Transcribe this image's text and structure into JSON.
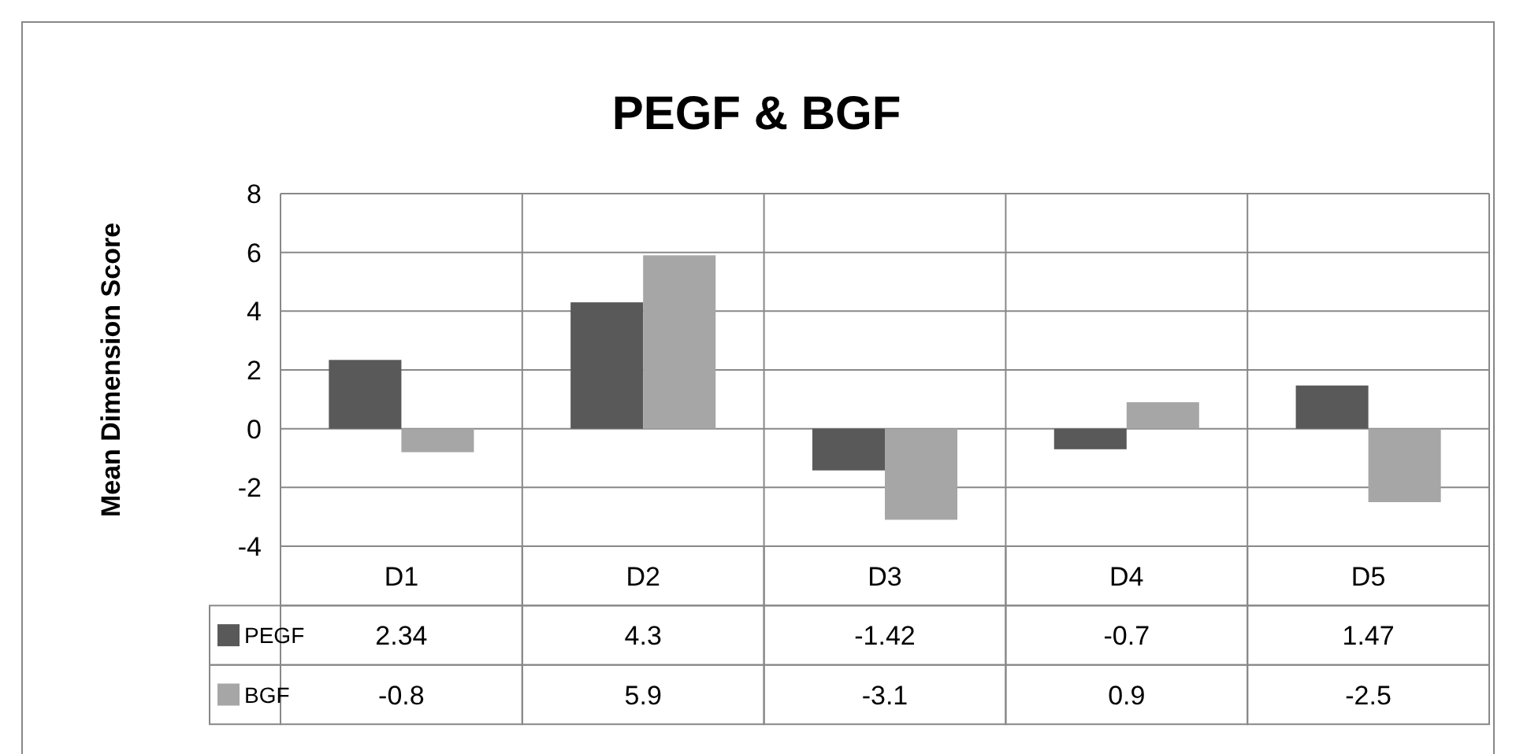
{
  "chart_data": {
    "type": "bar",
    "title": "PEGF  & BGF",
    "ylabel": "Mean Dimension Score",
    "categories": [
      "D1",
      "D2",
      "D3",
      "D4",
      "D5"
    ],
    "series": [
      {
        "name": "PEGF",
        "color": "#595959",
        "values": [
          2.34,
          4.3,
          -1.42,
          -0.7,
          1.47
        ]
      },
      {
        "name": "BGF",
        "color": "#a6a6a6",
        "values": [
          -0.8,
          5.9,
          -3.1,
          0.9,
          -2.5
        ]
      }
    ],
    "ylim": [
      -4,
      8
    ],
    "yticks": [
      -4,
      -2,
      0,
      2,
      4,
      6,
      8
    ],
    "grid": true,
    "data_labels": true,
    "legend": "bottom"
  }
}
